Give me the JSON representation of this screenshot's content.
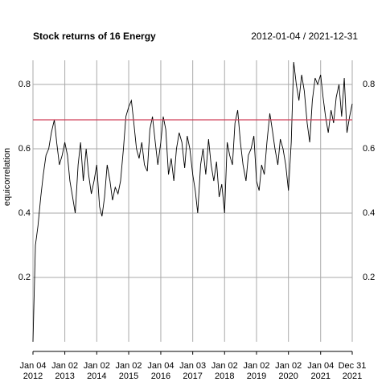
{
  "chart_data": {
    "type": "line",
    "title": "Stock returns of 16 Energy",
    "subtitle": "2012-01-04 / 2021-12-31",
    "y_label": "equicorrelation",
    "x": [
      "2012-01-04",
      "2012-02-01",
      "2012-03-01",
      "2012-04-02",
      "2012-05-01",
      "2012-06-01",
      "2012-07-02",
      "2012-08-01",
      "2012-09-04",
      "2012-10-01",
      "2012-11-01",
      "2012-12-03",
      "2013-01-02",
      "2013-02-01",
      "2013-03-01",
      "2013-04-01",
      "2013-05-01",
      "2013-06-03",
      "2013-07-01",
      "2013-08-01",
      "2013-09-03",
      "2013-10-01",
      "2013-11-01",
      "2013-12-02",
      "2014-01-02",
      "2014-02-03",
      "2014-03-03",
      "2014-04-01",
      "2014-05-01",
      "2014-06-02",
      "2014-07-01",
      "2014-08-01",
      "2014-09-02",
      "2014-10-01",
      "2014-11-03",
      "2014-12-01",
      "2015-01-02",
      "2015-02-02",
      "2015-03-02",
      "2015-04-01",
      "2015-05-01",
      "2015-06-01",
      "2015-07-01",
      "2015-08-03",
      "2015-09-01",
      "2015-10-01",
      "2015-11-02",
      "2015-12-01",
      "2016-01-04",
      "2016-02-01",
      "2016-03-01",
      "2016-04-01",
      "2016-05-02",
      "2016-06-01",
      "2016-07-01",
      "2016-08-01",
      "2016-09-01",
      "2016-10-03",
      "2016-11-01",
      "2016-12-01",
      "2017-01-03",
      "2017-02-01",
      "2017-03-01",
      "2017-04-03",
      "2017-05-01",
      "2017-06-01",
      "2017-07-03",
      "2017-08-01",
      "2017-09-01",
      "2017-10-02",
      "2017-11-01",
      "2017-12-01",
      "2018-01-02",
      "2018-02-01",
      "2018-03-01",
      "2018-04-02",
      "2018-05-01",
      "2018-06-01",
      "2018-07-02",
      "2018-08-01",
      "2018-09-04",
      "2018-10-01",
      "2018-11-01",
      "2018-12-03",
      "2019-01-02",
      "2019-02-01",
      "2019-03-01",
      "2019-04-01",
      "2019-05-01",
      "2019-06-03",
      "2019-07-01",
      "2019-08-01",
      "2019-09-03",
      "2019-10-01",
      "2019-11-01",
      "2019-12-02",
      "2020-01-02",
      "2020-02-03",
      "2020-03-02",
      "2020-04-01",
      "2020-05-01",
      "2020-06-01",
      "2020-07-01",
      "2020-08-03",
      "2020-09-01",
      "2020-10-01",
      "2020-11-02",
      "2020-12-01",
      "2021-01-04",
      "2021-02-01",
      "2021-03-01",
      "2021-04-01",
      "2021-05-03",
      "2021-06-01",
      "2021-07-01",
      "2021-08-02",
      "2021-09-01",
      "2021-10-01",
      "2021-11-01",
      "2021-12-01",
      "2021-12-31"
    ],
    "series": [
      {
        "color": "#000000",
        "values": [
          0.0,
          0.3,
          0.36,
          0.45,
          0.52,
          0.58,
          0.6,
          0.65,
          0.69,
          0.62,
          0.55,
          0.58,
          0.62,
          0.58,
          0.5,
          0.45,
          0.4,
          0.55,
          0.62,
          0.5,
          0.6,
          0.52,
          0.46,
          0.5,
          0.55,
          0.42,
          0.39,
          0.45,
          0.55,
          0.5,
          0.44,
          0.48,
          0.46,
          0.5,
          0.6,
          0.7,
          0.73,
          0.75,
          0.68,
          0.6,
          0.57,
          0.62,
          0.55,
          0.53,
          0.66,
          0.7,
          0.62,
          0.55,
          0.62,
          0.7,
          0.66,
          0.52,
          0.57,
          0.5,
          0.6,
          0.65,
          0.62,
          0.54,
          0.64,
          0.6,
          0.52,
          0.47,
          0.4,
          0.55,
          0.6,
          0.52,
          0.63,
          0.55,
          0.5,
          0.56,
          0.45,
          0.49,
          0.4,
          0.62,
          0.58,
          0.55,
          0.68,
          0.72,
          0.62,
          0.55,
          0.5,
          0.58,
          0.6,
          0.64,
          0.5,
          0.47,
          0.55,
          0.52,
          0.62,
          0.71,
          0.66,
          0.6,
          0.55,
          0.63,
          0.6,
          0.55,
          0.47,
          0.62,
          0.87,
          0.8,
          0.75,
          0.83,
          0.78,
          0.68,
          0.62,
          0.75,
          0.82,
          0.8,
          0.83,
          0.76,
          0.7,
          0.65,
          0.72,
          0.68,
          0.76,
          0.8,
          0.7,
          0.82,
          0.65,
          0.7,
          0.74
        ]
      }
    ],
    "reference_line": {
      "value": 0.69,
      "color": "#d0405a"
    },
    "xlim": [
      "2012-01-04",
      "2021-12-31"
    ],
    "xticks": [
      {
        "value": "2012-01-04",
        "label": "Jan 04\n2012"
      },
      {
        "value": "2013-01-02",
        "label": "Jan 02\n2013"
      },
      {
        "value": "2014-01-02",
        "label": "Jan 02\n2014"
      },
      {
        "value": "2015-01-02",
        "label": "Jan 02\n2015"
      },
      {
        "value": "2016-01-04",
        "label": "Jan 04\n2016"
      },
      {
        "value": "2017-01-03",
        "label": "Jan 03\n2017"
      },
      {
        "value": "2018-01-02",
        "label": "Jan 02\n2018"
      },
      {
        "value": "2019-01-02",
        "label": "Jan 02\n2019"
      },
      {
        "value": "2020-01-02",
        "label": "Jan 02\n2020"
      },
      {
        "value": "2021-01-04",
        "label": "Jan 04\n2021"
      },
      {
        "value": "2021-12-31",
        "label": "Dec 31\n2021"
      }
    ],
    "ylim": [
      0,
      0.875
    ],
    "yticks": [
      0.2,
      0.4,
      0.6,
      0.8
    ],
    "y2lim": [
      0,
      0.875
    ],
    "y2ticks": [
      0.2,
      0.4,
      0.6,
      0.8
    ],
    "grid": true
  }
}
